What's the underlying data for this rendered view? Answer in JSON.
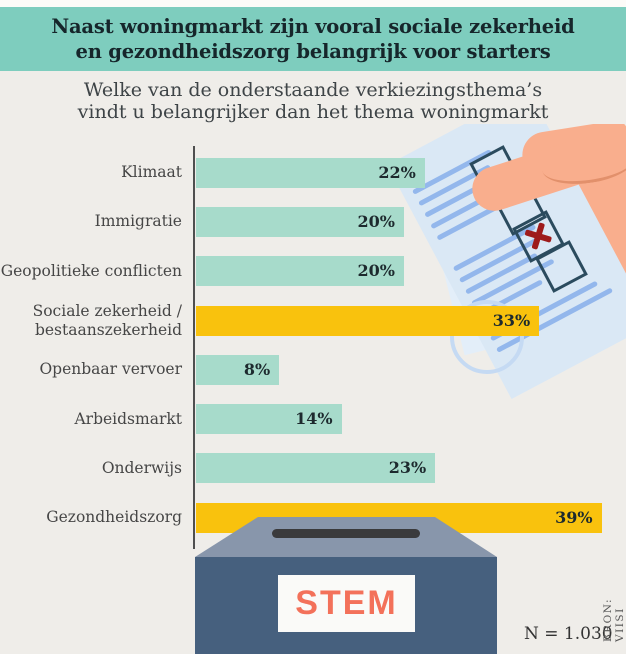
{
  "header": {
    "title_line1": "Naast woningmarkt zijn vooral sociale zekerheid",
    "title_line2": "en gezondheidszorg belangrijk voor starters",
    "band_color": "#7ecdbe"
  },
  "subtitle": {
    "line1": "Welke van de onderstaande verkiezingsthema’s",
    "line2": "vindt u belangrijker dan het thema woningmarkt"
  },
  "chart_data": {
    "type": "bar",
    "orientation": "horizontal",
    "title": "Welke van de onderstaande verkiezingsthema’s vindt u belangrijker dan het thema woningmarkt",
    "categories": [
      "Klimaat",
      "Immigratie",
      "Geopolitieke conflicten",
      "Sociale zekerheid / bestaanszekerheid",
      "Openbaar vervoer",
      "Arbeidsmarkt",
      "Onderwijs",
      "Gezondheidszorg"
    ],
    "values": [
      22,
      20,
      20,
      33,
      8,
      14,
      23,
      39
    ],
    "value_suffix": "%",
    "highlight": [
      false,
      false,
      false,
      true,
      false,
      false,
      false,
      true
    ],
    "bar_color": "#a7dbcb",
    "highlight_color": "#f9c20d",
    "xlim": [
      0,
      41
    ],
    "grid": false,
    "legend": "none"
  },
  "illustration": {
    "ballot_box_label": "STEM",
    "hand_icon": "hand-inserting-ballot",
    "ballot_icon": "ballot-paper-with-checked-box",
    "colors": {
      "hand": "#f9ae8d",
      "paper": "#dae8f5",
      "box_front": "#46607e",
      "box_lid": "#8896ab",
      "stem_text": "#f3715a",
      "check_x": "#9e1b1c"
    }
  },
  "footer": {
    "sample_size": "N = 1.030",
    "source": "BRON: VIISI"
  }
}
